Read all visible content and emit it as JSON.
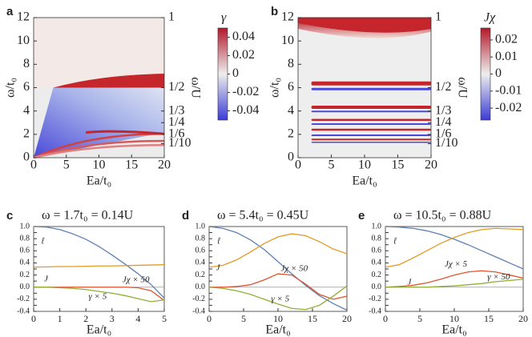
{
  "chart_data": [
    {
      "type": "heatmap",
      "panel": "a",
      "xlabel": "Ea/t₀",
      "ylabel": "ω/t₀",
      "y2label": "ω/U",
      "colorbar_label": "γ",
      "xlim": [
        0,
        20
      ],
      "xticks": [
        0,
        5,
        10,
        15,
        20
      ],
      "ylim": [
        0,
        12
      ],
      "yticks": [
        0,
        2,
        4,
        6,
        8,
        10,
        12
      ],
      "y2lim": [
        0,
        1
      ],
      "y2ticks": [
        1,
        {
          "value": 0.5,
          "label": "1/2"
        },
        {
          "value": 0.3333,
          "label": "1/3"
        },
        {
          "value": 0.25,
          "label": "1/4"
        },
        {
          "value": 0.1667,
          "label": "1/6"
        },
        {
          "value": 0.1,
          "label": "1/10"
        }
      ],
      "clim": [
        -0.05,
        0.05
      ],
      "cticks": [
        0.04,
        0.02,
        0,
        -0.02,
        -0.04
      ]
    },
    {
      "type": "heatmap",
      "panel": "b",
      "xlabel": "Ea/t₀",
      "ylabel": "ω/t₀",
      "y2label": "ω/U",
      "colorbar_label": "Jχ",
      "xlim": [
        0,
        20
      ],
      "xticks": [
        0,
        5,
        10,
        15,
        20
      ],
      "ylim": [
        0,
        12
      ],
      "yticks": [
        0,
        2,
        4,
        6,
        8,
        10,
        12
      ],
      "y2lim": [
        0,
        1
      ],
      "y2ticks": [
        1,
        {
          "value": 0.5,
          "label": "1/2"
        },
        {
          "value": 0.3333,
          "label": "1/3"
        },
        {
          "value": 0.25,
          "label": "1/4"
        },
        {
          "value": 0.1667,
          "label": "1/6"
        },
        {
          "value": 0.1,
          "label": "1/10"
        }
      ],
      "clim": [
        -0.027,
        0.027
      ],
      "cticks": [
        0.02,
        0.01,
        0,
        -0.01,
        -0.02
      ]
    },
    {
      "type": "line",
      "panel": "c",
      "title": "ω = 1.7t₀ = 0.14U",
      "xlabel": "Ea/t₀",
      "x": [
        0,
        0.5,
        1,
        1.5,
        2,
        2.5,
        3,
        3.5,
        4,
        4.5,
        5
      ],
      "xlim": [
        0,
        5
      ],
      "xticks": [
        0,
        1,
        2,
        3,
        4,
        5
      ],
      "ylim": [
        -0.4,
        1.0
      ],
      "yticks": [
        -0.4,
        -0.3,
        -0.2,
        -0.1,
        {
          "value": 0,
          "label": "0.0"
        },
        0.1,
        0.2,
        0.3,
        0.4,
        0.5,
        0.6,
        0.7,
        0.8,
        0.9,
        {
          "value": 1,
          "label": "1.0"
        }
      ],
      "series": [
        {
          "name": "t̃",
          "color": "#5e81b5",
          "values": [
            1.0,
            0.99,
            0.95,
            0.88,
            0.79,
            0.67,
            0.53,
            0.38,
            0.22,
            0.04,
            -0.18
          ]
        },
        {
          "name": "J",
          "color": "#e19c24",
          "values": [
            0.33,
            0.335,
            0.34,
            0.34,
            0.345,
            0.35,
            0.35,
            0.355,
            0.36,
            0.365,
            0.37
          ]
        },
        {
          "name": "Jχ × 50",
          "color": "#e0552f",
          "values": [
            0,
            0,
            0,
            0,
            0,
            0,
            0,
            0,
            -0.01,
            -0.06,
            -0.22
          ]
        },
        {
          "name": "γ × 5",
          "color": "#8fb032",
          "values": [
            0,
            0,
            -0.01,
            -0.02,
            -0.04,
            -0.07,
            -0.1,
            -0.14,
            -0.19,
            -0.24,
            -0.21
          ]
        }
      ]
    },
    {
      "type": "line",
      "panel": "d",
      "title": "ω = 5.4t₀ = 0.45U",
      "xlabel": "Ea/t₀",
      "x": [
        0,
        2,
        4,
        6,
        8,
        10,
        12,
        14,
        16,
        18,
        20
      ],
      "xlim": [
        0,
        20
      ],
      "xticks": [
        0,
        5,
        10,
        15,
        20
      ],
      "ylim": [
        -0.4,
        1.0
      ],
      "yticks": [
        -0.4,
        -0.3,
        -0.2,
        -0.1,
        {
          "value": 0,
          "label": "0.0"
        },
        0.1,
        0.2,
        0.3,
        0.4,
        0.5,
        0.6,
        0.7,
        0.8,
        0.9,
        {
          "value": 1,
          "label": "1.0"
        }
      ],
      "series": [
        {
          "name": "t̃",
          "color": "#5e81b5",
          "values": [
            1.0,
            0.97,
            0.9,
            0.78,
            0.62,
            0.42,
            0.22,
            0.03,
            -0.14,
            -0.27,
            -0.38
          ]
        },
        {
          "name": "J",
          "color": "#e19c24",
          "values": [
            0.33,
            0.36,
            0.45,
            0.58,
            0.72,
            0.83,
            0.88,
            0.85,
            0.75,
            0.63,
            0.55
          ]
        },
        {
          "name": "Jχ × 50",
          "color": "#e0552f",
          "values": [
            0,
            0,
            0.01,
            0.04,
            0.12,
            0.22,
            0.2,
            0.05,
            -0.12,
            -0.2,
            -0.15
          ]
        },
        {
          "name": "γ × 5",
          "color": "#8fb032",
          "values": [
            0,
            -0.02,
            -0.06,
            -0.12,
            -0.2,
            -0.28,
            -0.35,
            -0.37,
            -0.3,
            -0.15,
            0.02
          ]
        }
      ]
    },
    {
      "type": "line",
      "panel": "e",
      "title": "ω = 10.5t₀ = 0.88U",
      "xlabel": "Ea/t₀",
      "x": [
        0,
        2,
        4,
        6,
        8,
        10,
        12,
        14,
        16,
        18,
        20
      ],
      "xlim": [
        0,
        20
      ],
      "xticks": [
        0,
        5,
        10,
        15,
        20
      ],
      "ylim": [
        -0.4,
        1.0
      ],
      "yticks": [
        -0.4,
        -0.3,
        -0.2,
        -0.1,
        {
          "value": 0,
          "label": "0.0"
        },
        0.1,
        0.2,
        0.3,
        0.4,
        0.5,
        0.6,
        0.7,
        0.8,
        0.9,
        {
          "value": 1,
          "label": "1.0"
        }
      ],
      "series": [
        {
          "name": "t̃",
          "color": "#5e81b5",
          "values": [
            1.0,
            0.99,
            0.97,
            0.93,
            0.87,
            0.79,
            0.7,
            0.6,
            0.5,
            0.4,
            0.3
          ]
        },
        {
          "name": "J",
          "color": "#e19c24",
          "values": [
            0.33,
            0.37,
            0.48,
            0.6,
            0.72,
            0.82,
            0.9,
            0.95,
            0.97,
            0.96,
            0.95
          ]
        },
        {
          "name": "Jχ × 5",
          "color": "#e0552f",
          "values": [
            0,
            0.01,
            0.03,
            0.07,
            0.13,
            0.2,
            0.25,
            0.27,
            0.25,
            0.2,
            0.15
          ]
        },
        {
          "name": "γ × 50",
          "color": "#8fb032",
          "values": [
            0,
            0,
            0,
            0,
            0.01,
            0.02,
            0.04,
            0.06,
            0.09,
            0.11,
            0.13
          ]
        }
      ]
    }
  ]
}
